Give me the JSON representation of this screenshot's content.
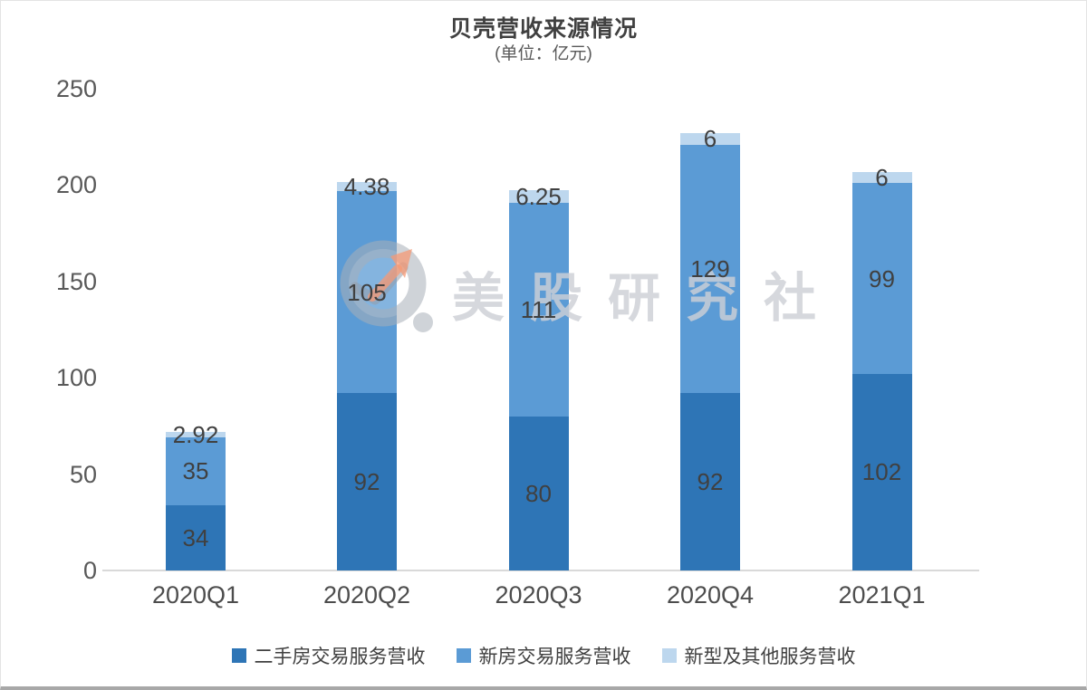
{
  "chart_data": {
    "type": "bar",
    "stacked": true,
    "title": "贝壳营收来源情况",
    "subtitle": "(单位：亿元)",
    "categories": [
      "2020Q1",
      "2020Q2",
      "2020Q3",
      "2020Q4",
      "2021Q1"
    ],
    "series": [
      {
        "name": "二手房交易服务营收",
        "color": "#2e75b6",
        "values": [
          34,
          92,
          80,
          92,
          102
        ],
        "labels": [
          "34",
          "92",
          "80",
          "92",
          "102"
        ]
      },
      {
        "name": "新房交易服务营收",
        "color": "#5b9bd5",
        "values": [
          35,
          105,
          111,
          129,
          99
        ],
        "labels": [
          "35",
          "105",
          "111",
          "129",
          "99"
        ]
      },
      {
        "name": "新型及其他服务营收",
        "color": "#bdd7ee",
        "values": [
          2.92,
          4.38,
          6.25,
          6,
          6
        ],
        "labels": [
          "2.92",
          "4.38",
          "6.25",
          "6",
          "6"
        ]
      }
    ],
    "y_axis": {
      "min": 0,
      "max": 250,
      "step": 50,
      "ticks": [
        "0",
        "50",
        "100",
        "150",
        "200",
        "250"
      ]
    },
    "x_axis_line_color": "#d9d9d9",
    "grid": false,
    "legend_position": "bottom",
    "label_color": "#404040",
    "axis_text_color": "#595959"
  },
  "watermark": {
    "text": "美股研究社",
    "logo": "magnifier-trend-icon",
    "text_color": "#cdcfd5",
    "logo_gray": "#a8aeb8",
    "arrow_color": "#f69a76"
  }
}
